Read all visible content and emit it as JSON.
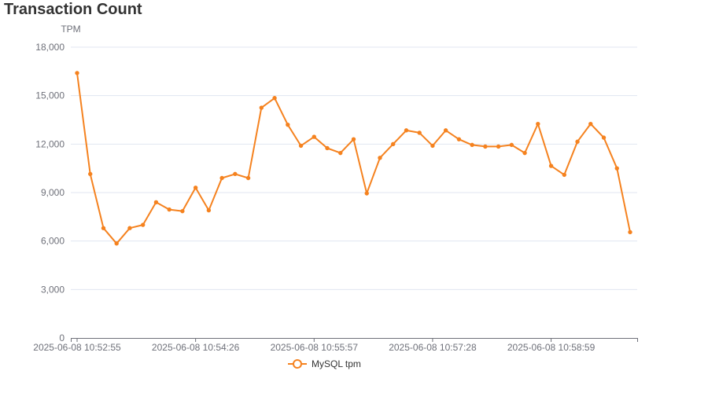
{
  "title": "Transaction Count",
  "chart_data": {
    "type": "line",
    "title": "Transaction Count",
    "ylabel": "TPM",
    "xlabel": "",
    "ylim": [
      0,
      18000
    ],
    "yticks": [
      "0",
      "3,000",
      "6,000",
      "9,000",
      "12,000",
      "15,000",
      "18,000"
    ],
    "xtick_labels": [
      "2025-06-08 10:52:55",
      "2025-06-08 10:54:26",
      "2025-06-08 10:55:57",
      "2025-06-08 10:57:28",
      "2025-06-08 10:58:59"
    ],
    "xtick_every": 9,
    "grid": true,
    "legend_position": "bottom",
    "series": [
      {
        "name": "MySQL tpm",
        "color": "#f5821f",
        "values": [
          16400,
          10150,
          6800,
          5850,
          6800,
          7000,
          8400,
          7950,
          7850,
          9300,
          7900,
          9900,
          10150,
          9900,
          14250,
          14850,
          13200,
          11900,
          12450,
          11750,
          11450,
          12300,
          8950,
          11150,
          12000,
          12850,
          12700,
          11900,
          12850,
          12300,
          11950,
          11850,
          11850,
          11950,
          11450,
          13250,
          10650,
          10100,
          12150,
          13250,
          12400,
          10500,
          6550
        ]
      }
    ]
  }
}
